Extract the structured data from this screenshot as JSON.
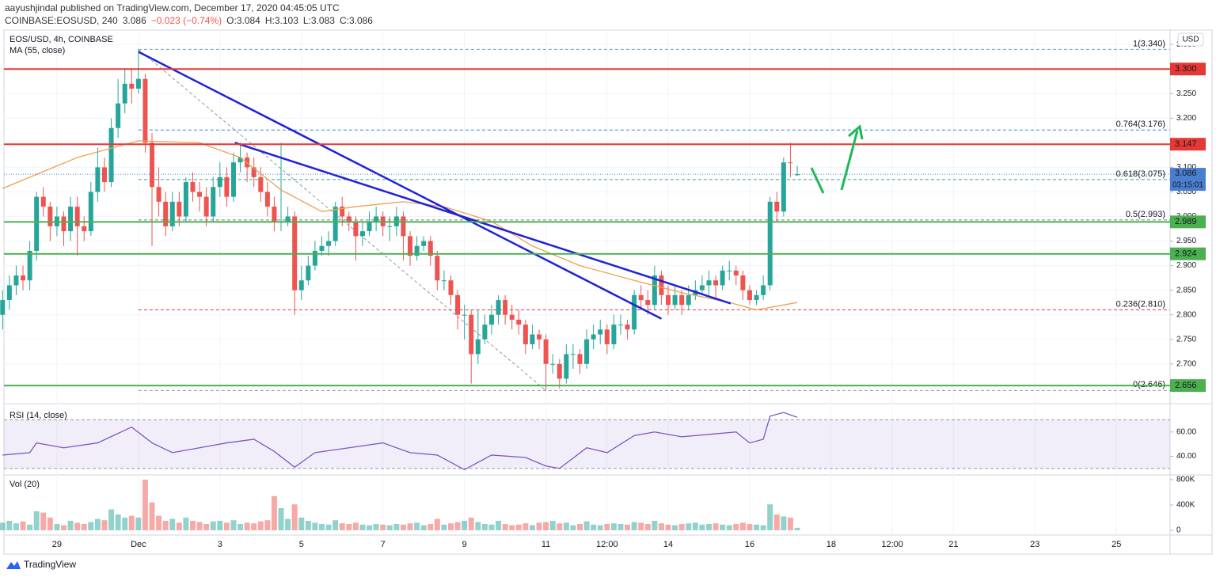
{
  "header": {
    "publisher": "aayushjindal published on TradingView.com, December 17, 2020 04:45:05 UTC",
    "symbol": "COINBASE:EOSUSD, 240",
    "last": "3.086",
    "change": "−0.023 (−0.74%)",
    "open": "O:3.084",
    "high": "H:3.103",
    "low": "L:3.083",
    "close": "C:3.086"
  },
  "footer": {
    "brand": "TradingView"
  },
  "chart_data": [
    {
      "type": "candlestick",
      "title": "EOS/USD, 4h, COINBASE",
      "currency": "USD",
      "up_color": "#26a69a",
      "down_color": "#ef5350",
      "grid": true,
      "open": [
        2.8,
        2.83,
        2.86,
        2.88,
        2.87,
        2.93,
        3.04,
        3.02,
        2.98,
        3.0,
        2.97,
        3.02,
        2.98,
        2.97,
        3.05,
        3.1,
        3.07,
        3.18,
        3.23,
        3.27,
        3.26,
        3.28,
        3.15,
        3.06,
        3.03,
        2.98,
        3.03,
        3.0,
        3.07,
        3.05,
        3.04,
        3.0,
        3.06,
        3.08,
        3.04,
        3.11,
        3.12,
        3.1,
        3.08,
        3.05,
        3.02,
        2.99,
        2.99,
        3.0,
        2.85,
        2.87,
        2.9,
        2.93,
        2.94,
        2.95,
        3.02,
        3.0,
        2.99,
        2.96,
        2.97,
        2.99,
        3.0,
        2.98,
        2.98,
        3.0,
        2.96,
        2.92,
        2.94,
        2.95,
        2.92,
        2.87,
        2.87,
        2.84,
        2.8,
        2.8,
        2.72,
        2.75,
        2.78,
        2.8,
        2.83,
        2.8,
        2.79,
        2.78,
        2.74,
        2.76,
        2.75,
        2.7,
        2.7,
        2.67,
        2.72,
        2.72,
        2.7,
        2.75,
        2.76,
        2.77,
        2.74,
        2.78,
        2.78,
        2.77,
        2.84,
        2.83,
        2.82,
        2.88,
        2.84,
        2.82,
        2.84,
        2.82,
        2.84,
        2.85,
        2.86,
        2.87,
        2.86,
        2.89,
        2.89,
        2.88,
        2.85,
        2.83,
        2.84,
        2.86,
        3.03,
        3.01,
        3.11,
        3.084
      ],
      "high": [
        2.85,
        2.88,
        2.9,
        2.9,
        2.95,
        3.05,
        3.06,
        3.03,
        3.02,
        3.01,
        3.04,
        3.04,
        3.0,
        3.07,
        3.14,
        3.12,
        3.2,
        3.28,
        3.3,
        3.3,
        3.34,
        3.29,
        3.17,
        3.1,
        3.05,
        3.05,
        3.05,
        3.08,
        3.09,
        3.07,
        3.06,
        3.08,
        3.11,
        3.1,
        3.13,
        3.15,
        3.13,
        3.12,
        3.1,
        3.07,
        3.04,
        3.15,
        3.02,
        3.01,
        2.9,
        2.92,
        2.95,
        2.96,
        2.97,
        3.03,
        3.04,
        3.01,
        3.0,
        2.99,
        3.01,
        3.02,
        3.01,
        3.0,
        3.02,
        3.01,
        2.97,
        2.96,
        2.96,
        2.96,
        2.93,
        2.89,
        2.88,
        2.85,
        2.82,
        2.81,
        2.81,
        2.8,
        2.82,
        2.84,
        2.84,
        2.82,
        2.81,
        2.79,
        2.78,
        2.77,
        2.76,
        2.72,
        2.71,
        2.74,
        2.74,
        2.73,
        2.77,
        2.78,
        2.79,
        2.78,
        2.8,
        2.8,
        2.79,
        2.85,
        2.86,
        2.85,
        2.9,
        2.89,
        2.86,
        2.86,
        2.85,
        2.86,
        2.87,
        2.88,
        2.89,
        2.88,
        2.9,
        2.91,
        2.9,
        2.89,
        2.86,
        2.85,
        2.88,
        3.04,
        3.05,
        3.12,
        3.15,
        3.103
      ],
      "low": [
        2.77,
        2.81,
        2.84,
        2.85,
        2.85,
        2.91,
        3.0,
        2.95,
        2.96,
        2.94,
        2.95,
        2.92,
        2.95,
        2.96,
        3.03,
        3.05,
        3.06,
        3.16,
        3.21,
        3.23,
        3.25,
        3.13,
        2.94,
        3.0,
        2.96,
        2.97,
        2.98,
        2.99,
        3.03,
        3.01,
        2.98,
        2.99,
        3.04,
        3.02,
        3.03,
        3.09,
        3.07,
        3.06,
        3.03,
        3.0,
        2.97,
        2.97,
        2.98,
        2.8,
        2.83,
        2.86,
        2.89,
        2.92,
        2.92,
        2.94,
        2.98,
        2.97,
        2.91,
        2.94,
        2.96,
        2.97,
        2.96,
        2.95,
        2.96,
        2.91,
        2.9,
        2.91,
        2.93,
        2.9,
        2.85,
        2.85,
        2.82,
        2.77,
        2.75,
        2.66,
        2.7,
        2.74,
        2.76,
        2.78,
        2.78,
        2.77,
        2.76,
        2.72,
        2.73,
        2.73,
        2.646,
        2.68,
        2.65,
        2.66,
        2.69,
        2.68,
        2.69,
        2.73,
        2.74,
        2.72,
        2.73,
        2.76,
        2.75,
        2.76,
        2.81,
        2.8,
        2.81,
        2.82,
        2.8,
        2.81,
        2.8,
        2.81,
        2.83,
        2.84,
        2.84,
        2.83,
        2.85,
        2.87,
        2.86,
        2.83,
        2.82,
        2.82,
        2.83,
        2.85,
        2.99,
        3.0,
        3.08,
        3.083
      ],
      "close": [
        2.83,
        2.86,
        2.88,
        2.87,
        2.93,
        3.04,
        3.02,
        2.98,
        3.0,
        2.97,
        3.02,
        2.98,
        2.97,
        3.05,
        3.1,
        3.07,
        3.18,
        3.23,
        3.27,
        3.26,
        3.28,
        3.15,
        3.06,
        3.03,
        2.98,
        3.03,
        3.0,
        3.07,
        3.05,
        3.04,
        3.0,
        3.06,
        3.08,
        3.04,
        3.11,
        3.12,
        3.1,
        3.08,
        3.05,
        3.02,
        2.99,
        2.99,
        3.0,
        2.85,
        2.87,
        2.9,
        2.93,
        2.94,
        2.95,
        3.02,
        3.0,
        2.99,
        2.96,
        2.97,
        2.99,
        3.0,
        2.98,
        2.98,
        3.0,
        2.96,
        2.92,
        2.94,
        2.95,
        2.92,
        2.87,
        2.87,
        2.84,
        2.8,
        2.8,
        2.72,
        2.75,
        2.78,
        2.8,
        2.83,
        2.8,
        2.79,
        2.78,
        2.74,
        2.76,
        2.75,
        2.7,
        2.7,
        2.67,
        2.72,
        2.72,
        2.7,
        2.75,
        2.76,
        2.77,
        2.74,
        2.78,
        2.78,
        2.77,
        2.84,
        2.83,
        2.82,
        2.88,
        2.84,
        2.82,
        2.84,
        2.82,
        2.84,
        2.85,
        2.86,
        2.87,
        2.86,
        2.89,
        2.89,
        2.88,
        2.85,
        2.83,
        2.84,
        2.86,
        3.03,
        3.01,
        3.11,
        3.109,
        3.086
      ],
      "xlim": [
        0.2,
        171.9
      ],
      "xticks": [
        {
          "value": 8,
          "label": "29"
        },
        {
          "value": 20,
          "label": "Dec"
        },
        {
          "value": 32,
          "label": "3"
        },
        {
          "value": 44,
          "label": "5"
        },
        {
          "value": 56,
          "label": "7"
        },
        {
          "value": 68,
          "label": "9"
        },
        {
          "value": 80,
          "label": "11"
        },
        {
          "value": 89,
          "label": "12:00"
        },
        {
          "value": 98,
          "label": "14"
        },
        {
          "value": 110,
          "label": "16"
        },
        {
          "value": 122,
          "label": "18"
        },
        {
          "value": 131,
          "label": "12:00"
        },
        {
          "value": 140,
          "label": "21"
        },
        {
          "value": 152,
          "label": "23"
        },
        {
          "value": 164,
          "label": "25"
        }
      ],
      "ylim": [
        2.624,
        3.376
      ],
      "yticks": [
        {
          "value": 2.65,
          "label": "2.650"
        },
        {
          "value": 2.7,
          "label": "2.700"
        },
        {
          "value": 2.75,
          "label": "2.750"
        },
        {
          "value": 2.8,
          "label": "2.800"
        },
        {
          "value": 2.85,
          "label": "2.850"
        },
        {
          "value": 2.9,
          "label": "2.900"
        },
        {
          "value": 2.95,
          "label": "2.950"
        },
        {
          "value": 3,
          "label": "3.000"
        },
        {
          "value": 3.05,
          "label": "3.050"
        },
        {
          "value": 3.1,
          "label": "3.100"
        },
        {
          "value": 3.15,
          "label": "3.150"
        },
        {
          "value": 3.2,
          "label": "3.200"
        },
        {
          "value": 3.25,
          "label": "3.250"
        },
        {
          "value": 3.3,
          "label": "3.300"
        },
        {
          "value": 3.35,
          "label": "3.350"
        }
      ],
      "overlays": [
        {
          "name": "MA (55, close)",
          "color": "#f0a050",
          "x": [
            0,
            11,
            20,
            29,
            35,
            41,
            47,
            52,
            59,
            65,
            72,
            78,
            85,
            93,
            100,
            107,
            111,
            117
          ],
          "values": [
            3.057,
            3.12,
            3.154,
            3.15,
            3.12,
            3.054,
            3.01,
            3.02,
            3.03,
            3.02,
            2.99,
            2.94,
            2.9,
            2.87,
            2.845,
            2.825,
            2.81,
            2.825
          ]
        }
      ],
      "fib": {
        "x": [
          20,
          80
        ],
        "levels": [
          {
            "value": 3.34,
            "label": "1(3.340)",
            "color": "#6a9fd4"
          },
          {
            "value": 3.176,
            "label": "0.764(3.176)",
            "color": "#2f80ed"
          },
          {
            "value": 3.075,
            "label": "0.618(3.075)",
            "color": "#26a69a"
          },
          {
            "value": 2.993,
            "label": "0.5(2.993)",
            "color": "#787b86"
          },
          {
            "value": 2.81,
            "label": "0.236(2.810)",
            "color": "#e53935"
          },
          {
            "value": 2.646,
            "label": "0(2.646)",
            "color": "#9598a1"
          }
        ]
      },
      "trendlines": [
        {
          "x": [
            20,
            97
          ],
          "values": [
            3.335,
            2.792
          ],
          "color": "#1f22d6"
        },
        {
          "x": [
            34.2,
            107.2
          ],
          "values": [
            3.15,
            2.823
          ],
          "color": "#1f22d6"
        }
      ],
      "levels": [
        {
          "value": 3.3,
          "label": "3.300",
          "color": "#e53935"
        },
        {
          "value": 3.147,
          "label": "3.147",
          "color": "#e53935"
        },
        {
          "value": 2.989,
          "label": "2.989",
          "color": "#4caf50"
        },
        {
          "value": 2.924,
          "label": "2.924",
          "color": "#4caf50"
        },
        {
          "value": 2.656,
          "label": "2.656",
          "color": "#4caf50"
        }
      ],
      "last_price": {
        "value": 3.086,
        "label": "3.086",
        "countdown": "03:15:01",
        "color": "#4a7fd0"
      }
    },
    {
      "type": "line",
      "title": "RSI (14, close)",
      "color": "#7e57c2",
      "band": [
        30,
        70
      ],
      "x": [
        0,
        4,
        5,
        9,
        14,
        19,
        22,
        25,
        29,
        33,
        37,
        40,
        43,
        46,
        51,
        56,
        60,
        64,
        68,
        72,
        77,
        80,
        82,
        86,
        89,
        93,
        96,
        100,
        104,
        108,
        110,
        112,
        113,
        115,
        117
      ],
      "values": [
        41,
        43,
        51,
        47,
        51,
        64,
        51,
        43,
        47,
        51,
        54,
        44,
        31,
        43,
        47,
        51,
        43,
        41,
        29,
        41,
        39,
        32,
        30,
        47,
        43,
        57,
        60,
        56,
        58,
        60,
        51,
        54,
        73,
        76,
        72
      ],
      "ylim": [
        26,
        80
      ],
      "yticks": [
        {
          "value": 40,
          "label": "40.00"
        },
        {
          "value": 60,
          "label": "60.00"
        }
      ]
    },
    {
      "type": "bar",
      "title": "Vol (20)",
      "values": [
        120000,
        150000,
        110000,
        140000,
        90000,
        300000,
        280000,
        200000,
        100000,
        80000,
        150000,
        120000,
        100000,
        130000,
        180000,
        160000,
        330000,
        250000,
        200000,
        230000,
        200000,
        800000,
        440000,
        230000,
        150000,
        180000,
        120000,
        200000,
        150000,
        130000,
        100000,
        140000,
        150000,
        120000,
        160000,
        100000,
        120000,
        110000,
        140000,
        160000,
        540000,
        350000,
        180000,
        410000,
        200000,
        150000,
        120000,
        100000,
        90000,
        160000,
        110000,
        100000,
        120000,
        90000,
        80000,
        100000,
        90000,
        80000,
        100000,
        90000,
        110000,
        120000,
        80000,
        100000,
        180000,
        90000,
        110000,
        130000,
        150000,
        200000,
        130000,
        100000,
        90000,
        150000,
        100000,
        80000,
        90000,
        110000,
        80000,
        120000,
        130000,
        150000,
        110000,
        120000,
        80000,
        100000,
        140000,
        90000,
        80000,
        100000,
        110000,
        100000,
        90000,
        130000,
        120000,
        100000,
        150000,
        110000,
        90000,
        80000,
        100000,
        110000,
        120000,
        90000,
        100000,
        110000,
        90000,
        80000,
        100000,
        120000,
        100000,
        90000,
        80000,
        410000,
        250000,
        220000,
        200000,
        40000
      ],
      "ylim": [
        0,
        850000
      ],
      "yticks": [
        0,
        {
          "value": 400000,
          "label": "400K"
        },
        {
          "value": 800000,
          "label": "800K"
        }
      ]
    }
  ]
}
